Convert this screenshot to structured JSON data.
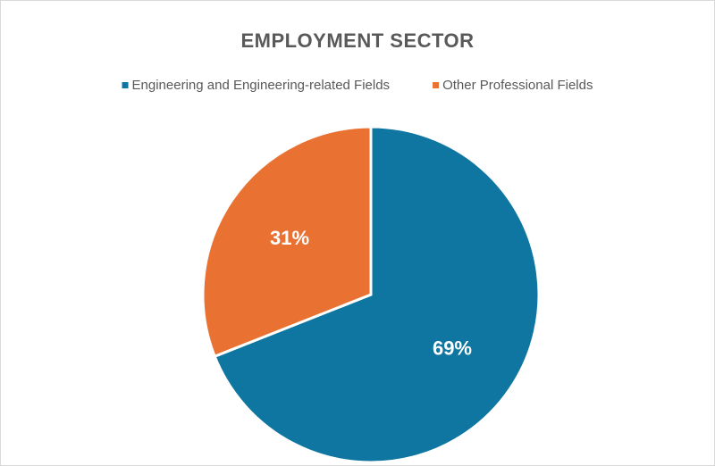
{
  "chart_data": {
    "type": "pie",
    "title": "EMPLOYMENT SECTOR",
    "categories": [
      "Engineering and Engineering-related Fields",
      "Other Professional Fields"
    ],
    "values": [
      69,
      31
    ],
    "value_labels": [
      "69%",
      "31%"
    ],
    "colors": [
      "#0e76a0",
      "#e97132"
    ],
    "legend": "top"
  }
}
